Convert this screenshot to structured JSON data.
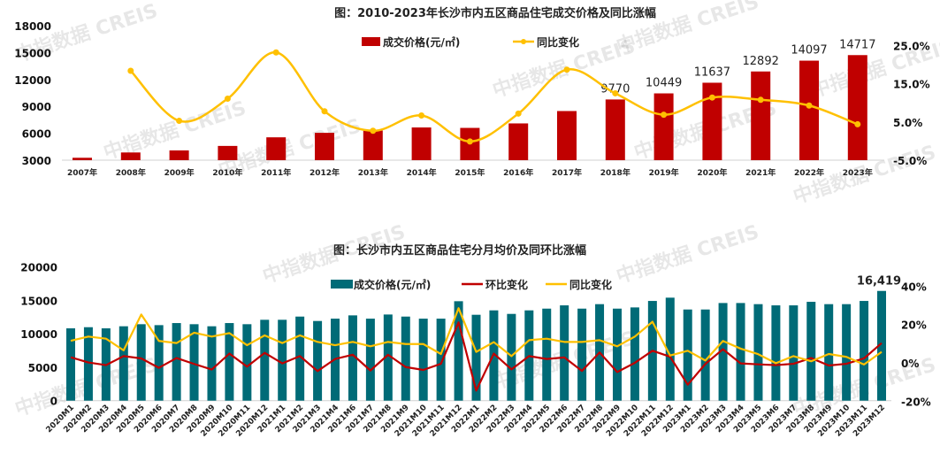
{
  "watermark": "中指数据 CREIS",
  "chart_data": [
    {
      "type": "bar+line",
      "title": "图：2010-2023年长沙市内五区商品住宅成交价格及同比涨幅",
      "categories": [
        "2007年",
        "2008年",
        "2009年",
        "2010年",
        "2011年",
        "2012年",
        "2013年",
        "2014年",
        "2015年",
        "2016年",
        "2017年",
        "2018年",
        "2019年",
        "2020年",
        "2021年",
        "2022年",
        "2023年"
      ],
      "series": [
        {
          "name": "成交价格(元/㎡)",
          "type": "bar",
          "axis": "left",
          "color": "#C00000",
          "values": [
            3270,
            3860,
            4090,
            4590,
            5550,
            6050,
            6300,
            6650,
            6600,
            7100,
            8480,
            9770,
            10449,
            11637,
            12892,
            14097,
            14717
          ]
        },
        {
          "name": "同比变化",
          "type": "line",
          "axis": "right",
          "color": "#FFC000",
          "values": [
            null,
            18.4,
            5.3,
            11.1,
            23.2,
            7.8,
            2.7,
            6.7,
            -0.1,
            7.2,
            18.7,
            12.5,
            6.9,
            11.4,
            10.8,
            9.3,
            4.4
          ]
        }
      ],
      "data_labels": {
        "2018年": "9770",
        "2019年": "10449",
        "2020年": "11637",
        "2021年": "12892",
        "2022年": "14097",
        "2023年": "14717"
      },
      "left_axis": {
        "ylim": [
          3000,
          18000
        ],
        "ticks": [
          "3000",
          "6000",
          "9000",
          "12000",
          "15000",
          "18000"
        ]
      },
      "right_axis": {
        "ylim": [
          -5,
          25
        ],
        "ticks": [
          "-5.0%",
          "5.0%",
          "15.0%",
          "25.0%"
        ]
      },
      "legend": "top-right",
      "grid": false
    },
    {
      "type": "bar+line",
      "title": "图：长沙市内五区商品住宅分月均价及同环比涨幅",
      "categories": [
        "2020M1",
        "2020M2",
        "2020M3",
        "2020M4",
        "2020M5",
        "2020M6",
        "2020M7",
        "2020M8",
        "2020M9",
        "2020M10",
        "2020M11",
        "2020M12",
        "2021M1",
        "2021M2",
        "2021M3",
        "2021M4",
        "2021M6",
        "2021M7",
        "2021M8",
        "2021M9",
        "2021M10",
        "2021M11",
        "2021M12",
        "2022M1",
        "2022M2",
        "2022M3",
        "2022M4",
        "2022M5",
        "2022M6",
        "2022M7",
        "2022M8",
        "2022M9",
        "2022M10",
        "2022M11",
        "2022M12",
        "2023M1",
        "2023M2",
        "2023M3",
        "2023M4",
        "2023M5",
        "2023M6",
        "2023M7",
        "2023M8",
        "2023M9",
        "2023M10",
        "2023M11",
        "2023M12"
      ],
      "series": [
        {
          "name": "成交价格(元/㎡)",
          "type": "bar",
          "axis": "left",
          "color": "#006B77",
          "values": [
            10820,
            10990,
            10820,
            11130,
            11440,
            11300,
            11610,
            11440,
            11130,
            11610,
            11440,
            12100,
            12100,
            12580,
            11920,
            12270,
            12760,
            12270,
            12890,
            12580,
            12270,
            12270,
            14880,
            12850,
            13510,
            12980,
            13510,
            13770,
            14260,
            13770,
            14440,
            13770,
            13950,
            14920,
            15410,
            13640,
            13640,
            14610,
            14610,
            14440,
            14260,
            14260,
            14790,
            14440,
            14440,
            14920,
            16419
          ]
        },
        {
          "name": "环比变化",
          "type": "line",
          "axis": "right",
          "color": "#C00000",
          "values": [
            2.9,
            0.2,
            -1.2,
            3.5,
            2.3,
            -2.6,
            2.5,
            -0.6,
            -3.5,
            4.8,
            -2.0,
            5.2,
            -0.3,
            3.5,
            -4.3,
            2.0,
            4.2,
            -4.0,
            4.2,
            -2.2,
            -3.7,
            -0.5,
            21.1,
            -14.5,
            4.8,
            -3.4,
            3.5,
            2.0,
            2.8,
            -4.2,
            5.4,
            -4.8,
            0.0,
            6.3,
            3.2,
            -11.4,
            -0.6,
            7.1,
            -0.3,
            -0.8,
            -1.2,
            -0.5,
            2.5,
            -1.4,
            -0.5,
            2.3,
            10.3
          ]
        },
        {
          "name": "同比变化",
          "type": "line",
          "axis": "right",
          "color": "#FFC000",
          "values": [
            11.5,
            13.7,
            12.6,
            6.5,
            25.2,
            11.4,
            10.3,
            15.7,
            13.7,
            15.5,
            9.2,
            14.3,
            10.3,
            14.3,
            10.9,
            9.2,
            10.9,
            8.6,
            10.9,
            9.8,
            9.8,
            4.6,
            28.5,
            5.7,
            10.8,
            3.5,
            11.8,
            12.6,
            10.9,
            10.9,
            11.8,
            8.6,
            13.7,
            21.4,
            3.8,
            6.3,
            1.2,
            11.4,
            7.4,
            4.5,
            -0.2,
            3.5,
            0.8,
            4.6,
            3.1,
            -0.9,
            5.7
          ]
        }
      ],
      "data_labels": {
        "2023M12": "16,419"
      },
      "left_axis": {
        "ylim": [
          0,
          20000
        ],
        "ticks": [
          "0",
          "5000",
          "10000",
          "15000",
          "20000"
        ]
      },
      "right_axis": {
        "ylim": [
          -20,
          40
        ],
        "ticks": [
          "-20%",
          "0%",
          "20%",
          "40%"
        ]
      },
      "legend": "top",
      "grid": false
    }
  ]
}
